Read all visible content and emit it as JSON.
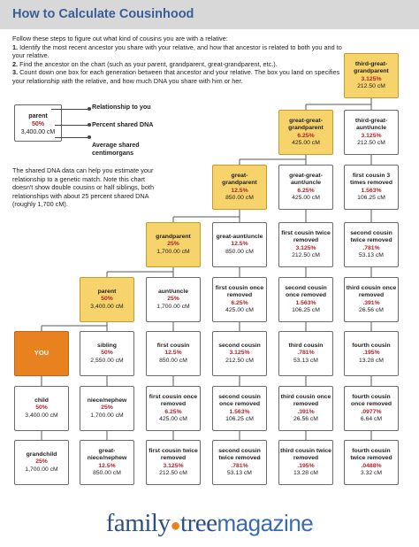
{
  "title": "How to Calculate Cousinhood",
  "intro": {
    "lead": "Follow these steps to figure out what kind of cousins you are with a relative:",
    "steps": [
      {
        "num": "1.",
        "text": "Identify the most recent ancestor you share with your relative, and how that ancestor is related to both you and to your relative."
      },
      {
        "num": "2.",
        "text": "Find the ancestor on the chart (such as your parent, grandparent, great-grandparent, etc.)."
      },
      {
        "num": "3.",
        "text": "Count down one box for each generation between that ancestor and your relative. The box you land on specifies your relationship with the relative, and how much DNA you share with him or her."
      }
    ]
  },
  "legend": {
    "sample": {
      "name": "parent",
      "percent": "50%",
      "cm": "3,400.00 cM"
    },
    "relationship": "Relationship to you",
    "percent": "Percent shared DNA",
    "cm": "Average shared centimorgans"
  },
  "dna_note": "The shared DNA data can help you estimate your relationship to a genetic match. Note this chart doesn't show double cousins or half siblings, both relationships with about 25 percent shared DNA (roughly 1,700 cM).",
  "boxes": {
    "c1r0": {
      "name": "third-great-grandparent",
      "percent": "3.125%",
      "cm": "212.50 cM"
    },
    "c1r1": {
      "name": "great-great-grandparent",
      "percent": "6.25%",
      "cm": "425.00 cM"
    },
    "c2r1": {
      "name": "third-great-aunt/uncle",
      "percent": "3.125%",
      "cm": "212.50 cM"
    },
    "c1r2": {
      "name": "great-grandparent",
      "percent": "12.5%",
      "cm": "850.00 cM"
    },
    "c2r2": {
      "name": "great-great-aunt/uncle",
      "percent": "6.25%",
      "cm": "425.00 cM"
    },
    "c3r2": {
      "name": "first cousin 3 times removed",
      "percent": "1.563%",
      "cm": "106.25 cM"
    },
    "c1r3": {
      "name": "grandparent",
      "percent": "25%",
      "cm": "1,700.00 cM"
    },
    "c2r3": {
      "name": "great-aunt/uncle",
      "percent": "12.5%",
      "cm": "850.00 cM"
    },
    "c3r3": {
      "name": "first cousin twice removed",
      "percent": "3.125%",
      "cm": "212.50 cM"
    },
    "c4r3": {
      "name": "second cousin twice removed",
      "percent": ".781%",
      "cm": "53.13 cM"
    },
    "c1r4": {
      "name": "parent",
      "percent": "50%",
      "cm": "3,400.00 cM"
    },
    "c2r4": {
      "name": "aunt/uncle",
      "percent": "25%",
      "cm": "1,700.00 cM"
    },
    "c3r4": {
      "name": "first cousin once removed",
      "percent": "6.25%",
      "cm": "425.00 cM"
    },
    "c4r4": {
      "name": "second cousin once removed",
      "percent": "1.563%",
      "cm": "106.25 cM"
    },
    "c5r4": {
      "name": "third cousin once removed",
      "percent": ".391%",
      "cm": "26.56 cM"
    },
    "c0r5": {
      "name": "YOU",
      "percent": "",
      "cm": ""
    },
    "c1r5": {
      "name": "sibling",
      "percent": "50%",
      "cm": "2,550.00 cM"
    },
    "c2r5": {
      "name": "first cousin",
      "percent": "12.5%",
      "cm": "850.00 cM"
    },
    "c3r5": {
      "name": "second cousin",
      "percent": "3.125%",
      "cm": "212.50 cM"
    },
    "c4r5": {
      "name": "third cousin",
      "percent": ".781%",
      "cm": "53.13 cM"
    },
    "c5r5": {
      "name": "fourth cousin",
      "percent": ".195%",
      "cm": "13.28 cM"
    },
    "c0r6": {
      "name": "child",
      "percent": "50%",
      "cm": "3,400.00 cM"
    },
    "c1r6": {
      "name": "niece/nephew",
      "percent": "25%",
      "cm": "1,700.00 cM"
    },
    "c2r6": {
      "name": "first cousin once removed",
      "percent": "6.25%",
      "cm": "425.00 cM"
    },
    "c3r6": {
      "name": "second cousin once removed",
      "percent": "1.563%",
      "cm": "106.25 cM"
    },
    "c4r6": {
      "name": "third cousin once removed",
      "percent": ".391%",
      "cm": "26.56 cM"
    },
    "c5r6": {
      "name": "fourth cousin once removed",
      "percent": ".0977%",
      "cm": "6.64 cM"
    },
    "c0r7": {
      "name": "grandchild",
      "percent": "25%",
      "cm": "1,700.00 cM"
    },
    "c1r7": {
      "name": "great-niece/nephew",
      "percent": "12.5%",
      "cm": "850.00 cM"
    },
    "c2r7": {
      "name": "first cousin twice removed",
      "percent": "3.125%",
      "cm": "212.50 cM"
    },
    "c3r7": {
      "name": "second cousin twice removed",
      "percent": ".781%",
      "cm": "53.13 cM"
    },
    "c4r7": {
      "name": "third cousin twice removed",
      "percent": ".195%",
      "cm": "13.28 cM"
    },
    "c5r7": {
      "name": "fourth cousin twice removed",
      "percent": ".0488%",
      "cm": "3.32 cM"
    }
  },
  "logo": {
    "part1": "family",
    "part2": "tree",
    "part3": "magazine"
  }
}
